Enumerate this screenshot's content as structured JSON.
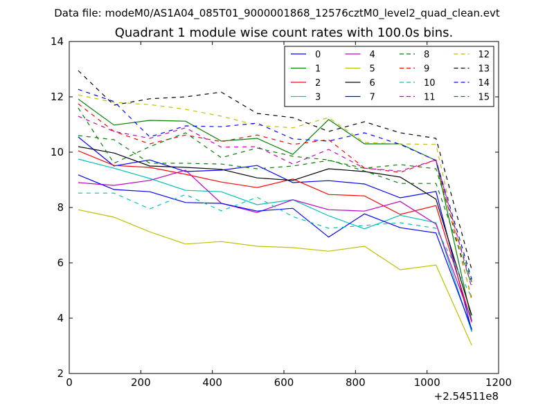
{
  "suptitle": "Data file: modeM0/AS1A04_085T01_9000001868_12576cztM0_level2_quad_clean.evt",
  "chart_data": {
    "type": "line",
    "title": "Quadrant 1 module wise count rates with 100.0s bins.",
    "xlabel": "",
    "ylabel": "",
    "x_offset_label": "+2.54511e8",
    "xlim": [
      0,
      1200
    ],
    "ylim": [
      2,
      14
    ],
    "xticks": [
      0,
      200,
      400,
      600,
      800,
      1000,
      1200
    ],
    "yticks": [
      2,
      4,
      6,
      8,
      10,
      12,
      14
    ],
    "grid": false,
    "legend_position": "top-right",
    "legend_columns": 4,
    "x": [
      25,
      125,
      225,
      325,
      425,
      525,
      625,
      725,
      825,
      925,
      1025,
      1125
    ],
    "series": [
      {
        "name": "0",
        "color": "#0000ff",
        "dash": "solid",
        "values": [
          10.55,
          9.5,
          9.72,
          9.3,
          9.35,
          9.52,
          8.9,
          8.97,
          8.85,
          8.35,
          8.58,
          3.55
        ]
      },
      {
        "name": "1",
        "color": "#008000",
        "dash": "solid",
        "values": [
          11.92,
          10.98,
          11.15,
          11.12,
          10.4,
          10.5,
          9.92,
          11.18,
          10.3,
          10.3,
          9.7,
          3.9
        ]
      },
      {
        "name": "2",
        "color": "#ff0000",
        "dash": "solid",
        "values": [
          10.05,
          9.52,
          9.45,
          9.2,
          8.92,
          8.72,
          9.03,
          8.47,
          8.42,
          7.75,
          8.07,
          3.85
        ]
      },
      {
        "name": "3",
        "color": "#00bfbf",
        "dash": "solid",
        "values": [
          9.75,
          9.42,
          9.05,
          8.62,
          8.57,
          8.1,
          8.28,
          7.7,
          7.23,
          7.72,
          7.45,
          3.5
        ]
      },
      {
        "name": "4",
        "color": "#bf00bf",
        "dash": "solid",
        "values": [
          8.9,
          8.8,
          8.98,
          9.35,
          8.15,
          7.82,
          8.28,
          7.92,
          7.87,
          8.22,
          7.4,
          3.9
        ]
      },
      {
        "name": "5",
        "color": "#bfbf00",
        "dash": "solid",
        "values": [
          7.92,
          7.65,
          7.12,
          6.68,
          6.77,
          6.6,
          6.55,
          6.42,
          6.6,
          5.75,
          5.92,
          3.02
        ]
      },
      {
        "name": "6",
        "color": "#000000",
        "dash": "solid",
        "values": [
          10.2,
          9.97,
          9.5,
          9.45,
          9.38,
          9.07,
          8.98,
          9.4,
          9.3,
          9.1,
          8.3,
          4.1
        ]
      },
      {
        "name": "7",
        "color": "#0000ff",
        "dash": "solid",
        "values": [
          9.18,
          8.65,
          8.57,
          8.18,
          8.15,
          7.87,
          7.97,
          6.93,
          7.77,
          7.27,
          7.08,
          3.6
        ]
      },
      {
        "name": "8",
        "color": "#008000",
        "dash": "dashed",
        "values": [
          10.6,
          10.45,
          9.6,
          9.6,
          9.57,
          9.4,
          9.5,
          9.7,
          9.42,
          9.55,
          9.4,
          5.3
        ]
      },
      {
        "name": "9",
        "color": "#ff0000",
        "dash": "dashed",
        "values": [
          11.75,
          10.75,
          10.3,
          10.62,
          10.38,
          10.62,
          10.28,
          10.45,
          9.43,
          9.27,
          9.72,
          4.7
        ]
      },
      {
        "name": "10",
        "color": "#00bfbf",
        "dash": "dashed",
        "values": [
          8.52,
          8.52,
          7.95,
          8.47,
          7.88,
          8.37,
          7.67,
          7.25,
          7.35,
          7.45,
          7.25,
          4.75
        ]
      },
      {
        "name": "11",
        "color": "#bf00bf",
        "dash": "dashed",
        "values": [
          11.3,
          10.75,
          10.5,
          10.88,
          10.18,
          10.2,
          9.57,
          10.1,
          9.42,
          9.32,
          9.72,
          5.1
        ]
      },
      {
        "name": "12",
        "color": "#bfbf00",
        "dash": "dashed",
        "values": [
          12.07,
          11.8,
          11.72,
          11.55,
          11.3,
          10.97,
          10.88,
          11.25,
          10.35,
          10.3,
          10.28,
          4.6
        ]
      },
      {
        "name": "13",
        "color": "#000000",
        "dash": "dashed",
        "values": [
          12.95,
          11.7,
          11.93,
          12.0,
          12.17,
          11.4,
          11.25,
          10.75,
          11.1,
          10.7,
          10.5,
          5.75
        ]
      },
      {
        "name": "14",
        "color": "#0000ff",
        "dash": "dashed",
        "values": [
          12.27,
          11.83,
          10.55,
          10.95,
          10.92,
          11.05,
          10.48,
          10.4,
          10.7,
          10.28,
          9.7,
          5.4
        ]
      },
      {
        "name": "15",
        "color": "#008000",
        "dash": "dashed",
        "values": [
          11.6,
          9.6,
          10.2,
          10.7,
          9.8,
          10.15,
          9.85,
          9.72,
          9.32,
          8.87,
          8.87,
          5.2
        ]
      }
    ]
  }
}
